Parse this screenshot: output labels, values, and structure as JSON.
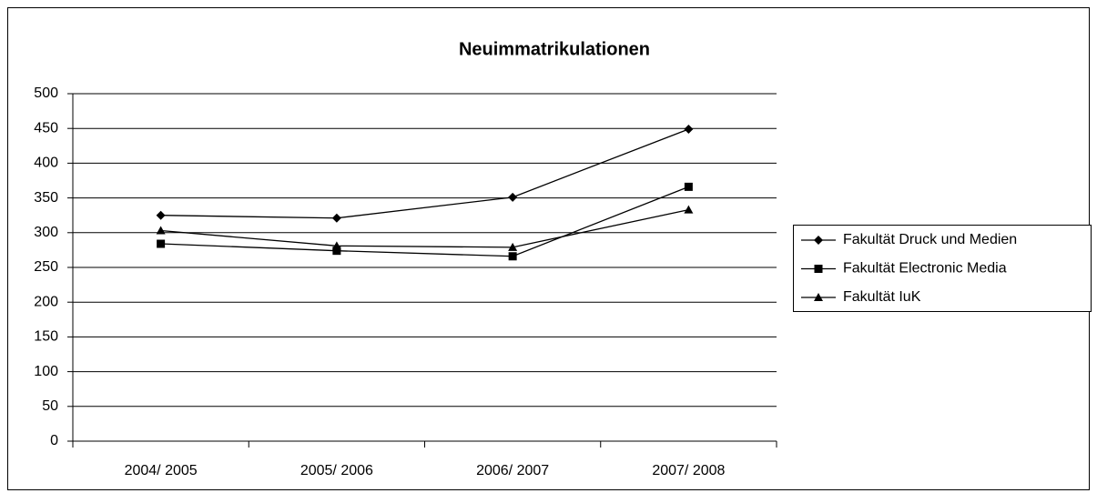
{
  "chart_data": {
    "type": "line",
    "title": "Neuimmatrikulationen",
    "categories": [
      "2004/ 2005",
      "2005/ 2006",
      "2006/ 2007",
      "2007/ 2008"
    ],
    "series": [
      {
        "name": "Fakultät Druck und Medien",
        "color": "#000000",
        "marker": "diamond",
        "values": [
          325,
          321,
          351,
          449
        ]
      },
      {
        "name": "Fakultät Electronic Media",
        "color": "#000000",
        "marker": "square",
        "values": [
          284,
          274,
          266,
          366
        ]
      },
      {
        "name": "Fakultät IuK",
        "color": "#000000",
        "marker": "triangle",
        "values": [
          303,
          281,
          279,
          333
        ]
      }
    ],
    "ylim": [
      0,
      500
    ],
    "yticks": [
      0,
      50,
      100,
      150,
      200,
      250,
      300,
      350,
      400,
      450,
      500
    ],
    "grid": true,
    "legend": "right"
  }
}
